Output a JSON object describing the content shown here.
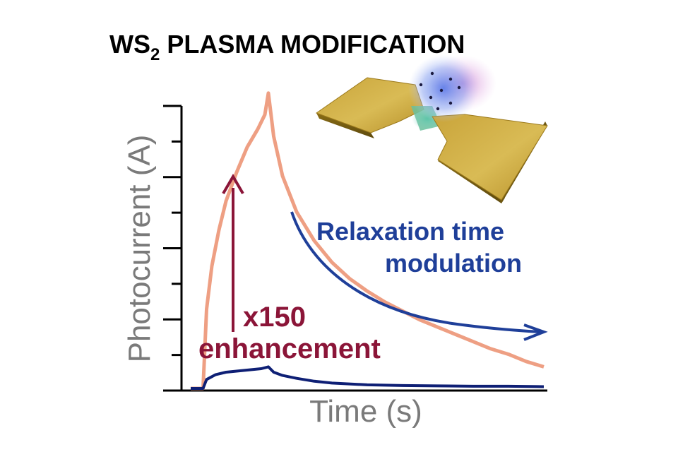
{
  "title": {
    "main": "WS",
    "subscript": "2",
    "rest": " PLASMA MODIFICATION"
  },
  "chart_data": {
    "type": "line",
    "xlabel": "Time (s)",
    "ylabel": "Photocurrent (A)",
    "ylim": [
      0,
      8
    ],
    "xlim": [
      0,
      10
    ],
    "y_ticks_count": 9,
    "grid": false,
    "series": [
      {
        "color": "#ee9f83",
        "x": [
          0,
          0.35,
          0.45,
          0.6,
          0.8,
          1.0,
          1.3,
          1.6,
          1.9,
          2.1,
          2.2,
          2.35,
          2.6,
          3.0,
          3.5,
          4.0,
          4.5,
          5.0,
          5.5,
          6.0,
          6.5,
          7.0,
          7.5,
          8.0,
          8.5,
          9.0,
          9.5,
          10.0
        ],
        "values": [
          0,
          0,
          2.2,
          3.4,
          4.4,
          5.2,
          6.0,
          6.7,
          7.2,
          7.6,
          8.2,
          7.0,
          5.9,
          4.9,
          4.1,
          3.5,
          3.05,
          2.7,
          2.4,
          2.15,
          1.9,
          1.7,
          1.5,
          1.3,
          1.1,
          0.95,
          0.75,
          0.6
        ]
      },
      {
        "color": "#0e1f75",
        "x": [
          0,
          0.35,
          0.45,
          0.7,
          1.0,
          1.5,
          2.0,
          2.2,
          2.35,
          2.6,
          3.0,
          3.5,
          4.0,
          5.0,
          6.0,
          7.0,
          8.0,
          9.0,
          10.0
        ],
        "values": [
          0,
          0,
          0.25,
          0.38,
          0.45,
          0.5,
          0.55,
          0.6,
          0.45,
          0.36,
          0.28,
          0.2,
          0.15,
          0.1,
          0.08,
          0.07,
          0.06,
          0.06,
          0.05
        ]
      }
    ],
    "annotations": {
      "enhancement_line1": "x150",
      "enhancement_line2": "enhancement",
      "relaxation_line1": "Relaxation time",
      "relaxation_line2": "modulation"
    }
  },
  "colors": {
    "enhancement_arrow": "#8b1538",
    "relaxation_arrow": "#1f3f99",
    "axis": "#000000",
    "gold_light": "#d8b750",
    "gold_dark": "#8a6d16"
  },
  "icons": {
    "device": "ws2-device-illustration"
  }
}
